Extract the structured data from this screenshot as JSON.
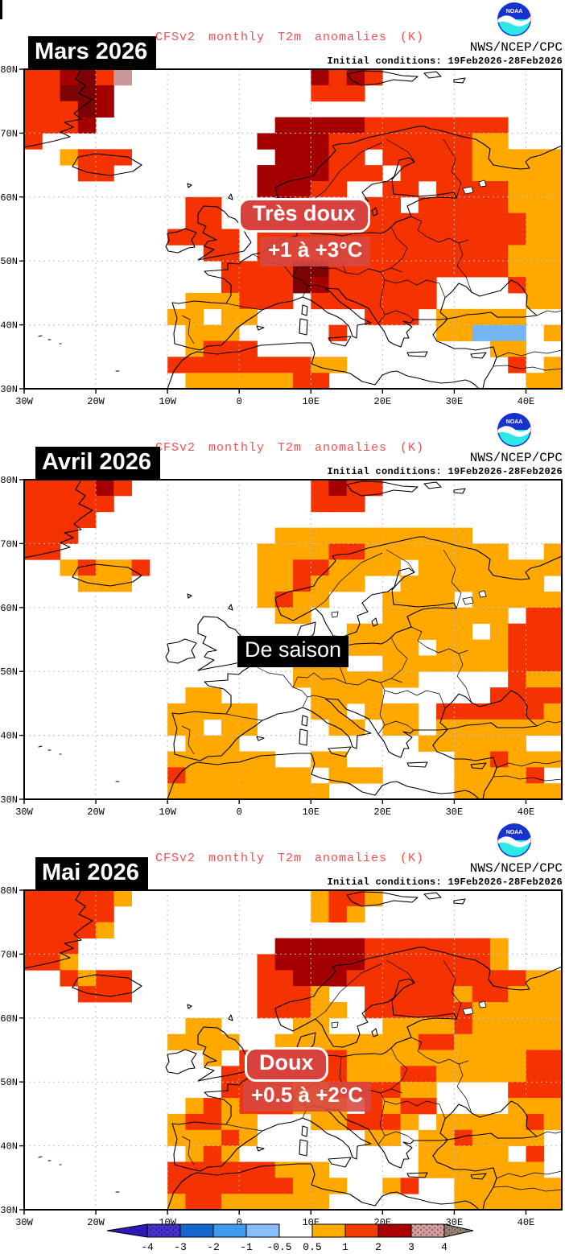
{
  "header": {
    "title": "CFSv2 monthly T2m anomalies (K)",
    "agency": "NWS/NCEP/CPC",
    "initial_conditions": "Initial conditions: 19Feb2026-28Feb2026",
    "logo_text": "NOAA"
  },
  "panels": [
    {
      "month": "Mars 2026",
      "annotation_label": "Très doux",
      "annotation_range": "+1 à +3°C"
    },
    {
      "month": "Avril 2026",
      "annotation_label": "De saison",
      "annotation_range": ""
    },
    {
      "month": "Mai 2026",
      "annotation_label": "Doux",
      "annotation_range": "+0.5 à +2°C"
    }
  ],
  "axes": {
    "lat_labels": [
      "80N",
      "70N",
      "60N",
      "50N",
      "40N",
      "30N"
    ],
    "lat_values": [
      80,
      70,
      60,
      50,
      40,
      30
    ],
    "lon_labels": [
      "30W",
      "20W",
      "10W",
      "0",
      "10E",
      "20E",
      "30E",
      "40E"
    ],
    "lon_values": [
      -30,
      -20,
      -10,
      0,
      10,
      20,
      30,
      40
    ],
    "lat_range": [
      30,
      80
    ],
    "lon_range": [
      -30,
      45
    ]
  },
  "colorbar": {
    "ticks": [
      "-4",
      "-3",
      "-2",
      "-1",
      "-0.5",
      "0.5",
      "1",
      "2",
      "3",
      "4"
    ],
    "negative_colors": [
      "#4733C9",
      "#1565CE",
      "#3F9BEF",
      "#86BDFA"
    ],
    "positive_colors": [
      "#FFAB00",
      "#F53C00",
      "#A80000",
      "#CDA1A1"
    ],
    "arrow_left_color": "#2B1AB8",
    "arrow_right_color": "#8B8578",
    "speckle_dark_blue": "#140A78",
    "speckle_dark_red": "#992222",
    "units": "K"
  },
  "chart_data": {
    "type": "heatmap",
    "title": "CFSv2 monthly T2m anomalies (K)",
    "units": "K",
    "lat_range": [
      30,
      80
    ],
    "lon_range": [
      -30,
      45
    ],
    "legend_colors": {
      "o": "#FFA800",
      "r": "#F43300",
      "d": "#A40000",
      "D": "#7C0404",
      "b": "#74B5F2",
      "p": "#C99898"
    },
    "legend_values": {
      "o": "+0.5 to +1 K",
      "r": "+1 to +2 K",
      "d": "+2 to +3 K",
      "D": "+3 to +4 K dark",
      "p": "+3 to +4 K speckled",
      "b": "-1 to -0.5 K",
      ".": "-0.5 to +0.5 K (white)"
    },
    "maps": [
      {
        "month": "Mars 2026",
        "summary": "Très doux +1 à +3°C",
        "grid": [
          "rrdDrp..........drdr..........",
          "rrDDd...........rrr...........",
          "rrrDd.........................",
          "rrrd..........dddddrrrrrrrr...",
          "r............ddddrrrrrrrroo...",
          "..orrr........dddrr.rrrrrooooo",
          "...rr........ddddrrr.rrrrooooo",
          ".............dddrr..rr.rrrrooo",
          ".........rr...dr...rr.rrrrrooo",
          ".........rr....r..rrrrrrrrrroo",
          "........rrrr.rrrrrrrrrrrrrrroo",
          "..........rr.rrrrrrrrrrrrrrooo",
          "...........rrrrDDrrrrrrrrrrooo",
          "...........rrrrDdrrrrrr....roo",
          ".........ooorrr.rrrrrrr.....oo",
          "........oo.oo......rrr.ooooo..",
          ".........ooo.....r.....oobbb.o",
          ".........orrr.............oo..",
          "........rrrrrrrroo.........r.o",
          ".........oooooorr...........oo"
        ]
      },
      {
        "month": "Avril 2026",
        "summary": "De saison",
        "grid": [
          "rrrrdr..........rdrr..........",
          "rrrrr...........rrr...........",
          "rrrr..........................",
          "rrr...........ooooooooooo.....",
          "rr...........oooorroooooooo..o",
          "..oroor......oorroooo.oooooooo",
          "...ooo.......oorooo..oooooooo.",
          ".............oroo...oooo.ooooo",
          "..............oo....ooooooo.rr",
          "..................ooooooo.orrr",
          ".................ooooo.oooorrr",
          "...............ooo..ooooooorrr",
          "...............ooooooo.....roo",
          ".........oo.....oooo......rrrr",
          "........ooooo...oo.ooo.rrrrrro",
          "........oo.oo....oo.oo.ooooooo",
          ".........ooo..........oooooo..",
          "........oooooo..oo......oorooo",
          "........rooooooo.ooo....oooor.",
          "........ooooooooo.......oooooo"
        ]
      },
      {
        "month": "Mai 2026",
        "summary": "Doux +0.5 à +2°C",
        "grid": [
          "rrrrro..........orro..........",
          "rrrrr...........oro...........",
          "rrrro.........................",
          "rrr...........dddddrrrrrrro...",
          "rro..........rdddddrrrrrrro...",
          "..rorr.......rrdddrrrrrrrrrroo",
          "...rrr.......rrro..rrrrrorrooo",
          ".............rrroo.rrrrrrooooo",
          ".........oo....oo...oooorooooo",
          "........oooo..oooooooorroooooo",
          "..........o.rrrrrroooooooooorr",
          "...........rrrrrrrooorrooooorr",
          "...........rrrroorrrroo....rrr",
          ".........ororrrooo.rorr....ooo",
          "........orroo...oorrro.oooooro",
          "........oooro......oo.ooroooo.",
          ".........oro..........ooooo.r.",
          "........rrrrrrooo.....ooooooo.",
          "........rrrrrrrooo..or..oooooo",
          "........orroooooo.......oooooo"
        ]
      }
    ]
  }
}
